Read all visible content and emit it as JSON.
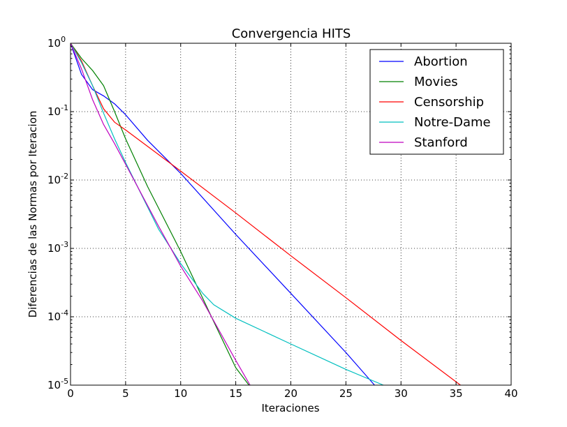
{
  "chart_data": {
    "type": "line",
    "title": "Convergencia HITS",
    "xlabel": "Iteraciones",
    "ylabel": "Diferencias de las Normas por Iteracion",
    "xlim": [
      0,
      40
    ],
    "ylim": [
      1e-05,
      1
    ],
    "yscale": "log",
    "grid": true,
    "legend_placement": "top-right",
    "xticks": [
      0,
      5,
      10,
      15,
      20,
      25,
      30,
      35,
      40
    ],
    "xtick_labels": [
      "0",
      "5",
      "10",
      "15",
      "20",
      "25",
      "30",
      "35",
      "40"
    ],
    "ytick_bases": [
      "10",
      "10",
      "10",
      "10",
      "10",
      "10"
    ],
    "ytick_exponents": [
      "0",
      "-1",
      "-2",
      "-3",
      "-4",
      "-5"
    ],
    "yticks": [
      1,
      0.1,
      0.01,
      0.001,
      0.0001,
      1e-05
    ],
    "series": [
      {
        "name": "Abortion",
        "color": "#0000ff",
        "points": [
          [
            0,
            1.0
          ],
          [
            1,
            0.35
          ],
          [
            2,
            0.21
          ],
          [
            3,
            0.17
          ],
          [
            4,
            0.13
          ],
          [
            5,
            0.09
          ],
          [
            7,
            0.038
          ],
          [
            10,
            0.0125
          ],
          [
            15,
            0.0016
          ],
          [
            20,
            0.00022
          ],
          [
            25,
            3e-05
          ],
          [
            27.6,
            1e-05
          ]
        ]
      },
      {
        "name": "Movies",
        "color": "#008000",
        "points": [
          [
            0,
            1.0
          ],
          [
            1,
            0.6
          ],
          [
            2,
            0.4
          ],
          [
            3,
            0.24
          ],
          [
            4,
            0.1
          ],
          [
            5,
            0.04
          ],
          [
            7,
            0.008
          ],
          [
            10,
            0.0009
          ],
          [
            13,
            8.5e-05
          ],
          [
            15,
            1.8e-05
          ],
          [
            16.2,
            1e-05
          ]
        ]
      },
      {
        "name": "Censorship",
        "color": "#ff0000",
        "points": [
          [
            0,
            1.0
          ],
          [
            1,
            0.55
          ],
          [
            2,
            0.24
          ],
          [
            3,
            0.11
          ],
          [
            4,
            0.07
          ],
          [
            5,
            0.054
          ],
          [
            10,
            0.0135
          ],
          [
            15,
            0.0033
          ],
          [
            20,
            0.00078
          ],
          [
            25,
            0.00019
          ],
          [
            30,
            4.5e-05
          ],
          [
            35.4,
            1e-05
          ]
        ]
      },
      {
        "name": "Notre-Dame",
        "color": "#00bfbf",
        "points": [
          [
            0,
            1.0
          ],
          [
            1,
            0.52
          ],
          [
            2,
            0.24
          ],
          [
            3,
            0.095
          ],
          [
            4,
            0.04
          ],
          [
            5,
            0.018
          ],
          [
            8,
            0.0019
          ],
          [
            10,
            0.0006
          ],
          [
            12,
            0.00022
          ],
          [
            13,
            0.00015
          ],
          [
            15,
            9.5e-05
          ],
          [
            20,
            4e-05
          ],
          [
            25,
            1.7e-05
          ],
          [
            28.4,
            1e-05
          ]
        ]
      },
      {
        "name": "Stanford",
        "color": "#bf00bf",
        "points": [
          [
            0,
            1.0
          ],
          [
            1,
            0.42
          ],
          [
            2,
            0.15
          ],
          [
            3,
            0.065
          ],
          [
            4,
            0.034
          ],
          [
            5,
            0.017
          ],
          [
            8,
            0.0021
          ],
          [
            10,
            0.00055
          ],
          [
            12,
            0.00017
          ],
          [
            15,
            2.3e-05
          ],
          [
            16.3,
            1e-05
          ]
        ]
      }
    ]
  }
}
